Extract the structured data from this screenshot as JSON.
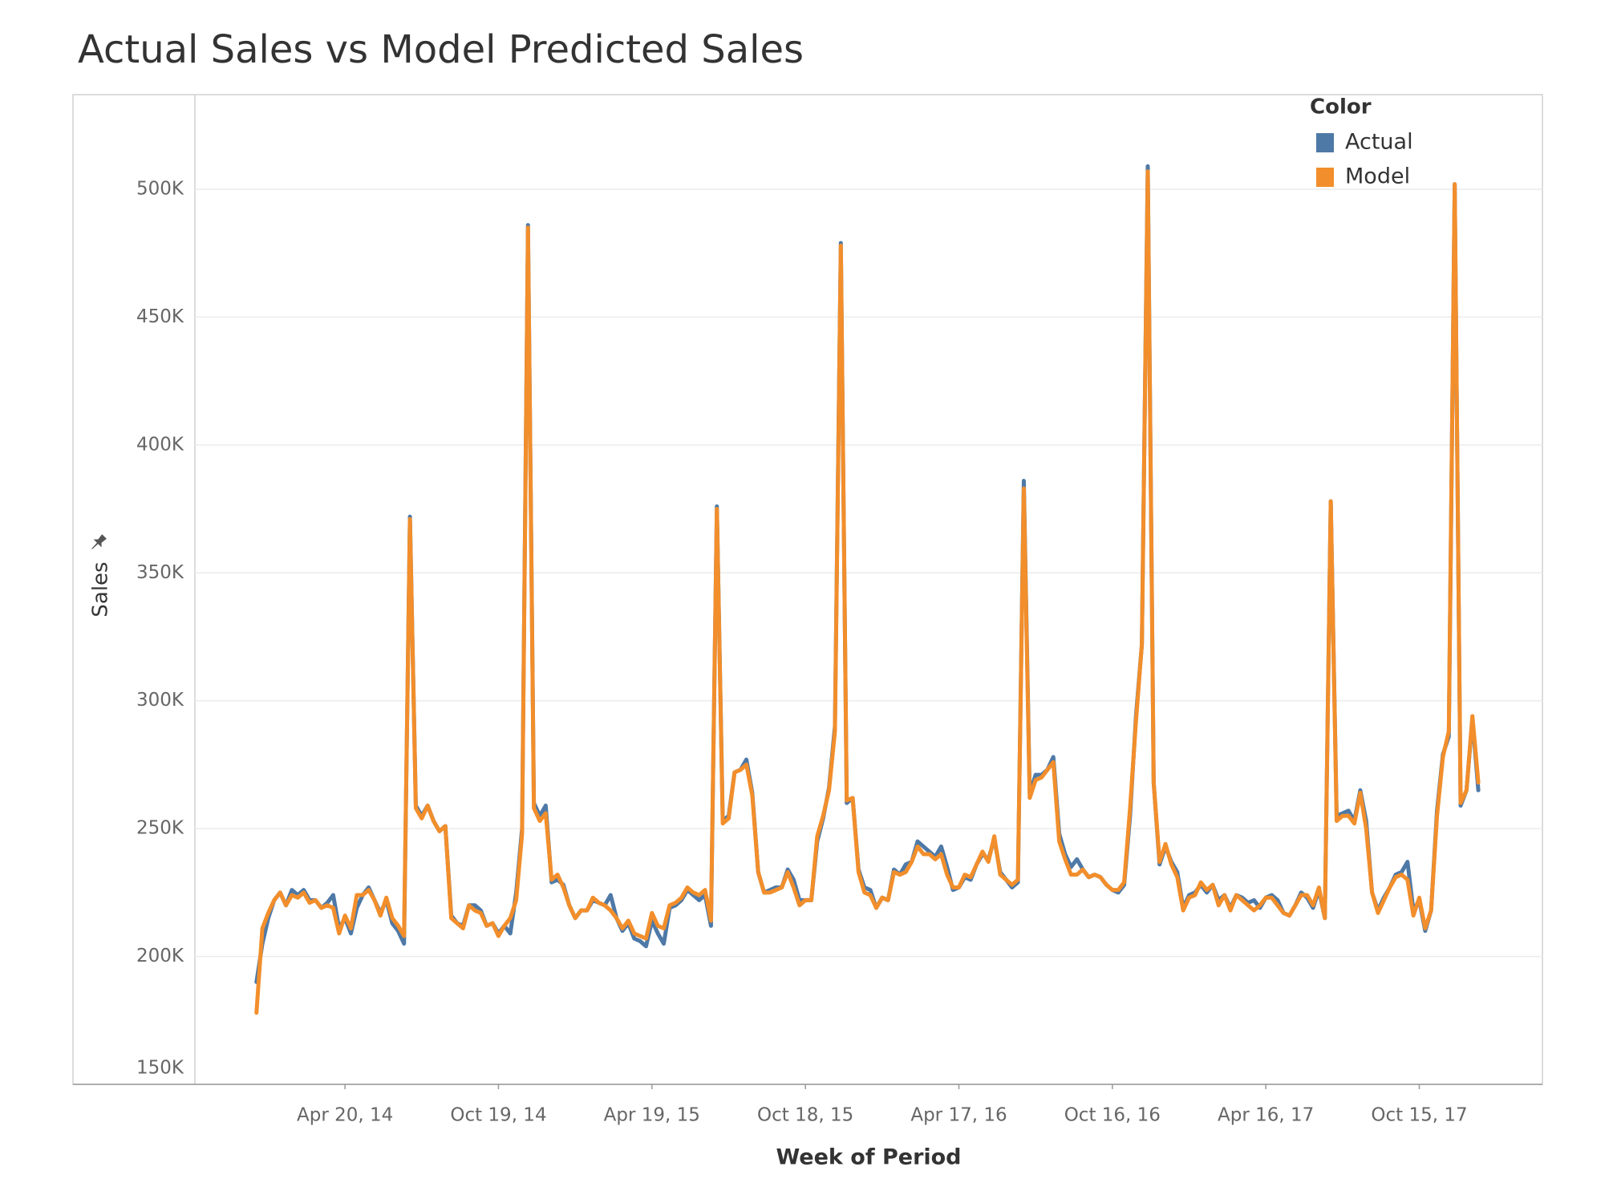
{
  "chart_data": {
    "type": "line",
    "title": "Actual Sales vs Model Predicted Sales",
    "x_label": "Week of Period",
    "y_label": "Sales",
    "legend_title": "Color",
    "legend_position": "top-right",
    "grid": true,
    "xlim": [
      "2013-10-24",
      "2018-03-10"
    ],
    "ylim": [
      150000,
      537000
    ],
    "yticks": [
      {
        "value": 150000,
        "label": "150K"
      },
      {
        "value": 200000,
        "label": "200K"
      },
      {
        "value": 250000,
        "label": "250K"
      },
      {
        "value": 300000,
        "label": "300K"
      },
      {
        "value": 350000,
        "label": "350K"
      },
      {
        "value": 400000,
        "label": "400K"
      },
      {
        "value": 450000,
        "label": "450K"
      },
      {
        "value": 500000,
        "label": "500K"
      }
    ],
    "xticks": [
      {
        "value": "2014-04-20",
        "label": "Apr 20, 14"
      },
      {
        "value": "2014-10-19",
        "label": "Oct 19, 14"
      },
      {
        "value": "2015-04-19",
        "label": "Apr 19, 15"
      },
      {
        "value": "2015-10-18",
        "label": "Oct 18, 15"
      },
      {
        "value": "2016-04-17",
        "label": "Apr 17, 16"
      },
      {
        "value": "2016-10-16",
        "label": "Oct 16, 16"
      },
      {
        "value": "2017-04-16",
        "label": "Apr 16, 17"
      },
      {
        "value": "2017-10-15",
        "label": "Oct 15, 17"
      }
    ],
    "x": [
      "2014-01-05",
      "2014-01-12",
      "2014-01-19",
      "2014-01-26",
      "2014-02-02",
      "2014-02-09",
      "2014-02-16",
      "2014-02-23",
      "2014-03-02",
      "2014-03-09",
      "2014-03-16",
      "2014-03-23",
      "2014-03-30",
      "2014-04-06",
      "2014-04-13",
      "2014-04-20",
      "2014-04-27",
      "2014-05-04",
      "2014-05-11",
      "2014-05-18",
      "2014-05-25",
      "2014-06-01",
      "2014-06-08",
      "2014-06-15",
      "2014-06-22",
      "2014-06-29",
      "2014-07-06",
      "2014-07-13",
      "2014-07-20",
      "2014-07-27",
      "2014-08-03",
      "2014-08-10",
      "2014-08-17",
      "2014-08-24",
      "2014-08-31",
      "2014-09-07",
      "2014-09-14",
      "2014-09-21",
      "2014-09-28",
      "2014-10-05",
      "2014-10-12",
      "2014-10-19",
      "2014-10-26",
      "2014-11-02",
      "2014-11-09",
      "2014-11-16",
      "2014-11-23",
      "2014-11-30",
      "2014-12-07",
      "2014-12-14",
      "2014-12-21",
      "2014-12-28",
      "2015-01-04",
      "2015-01-11",
      "2015-01-18",
      "2015-01-25",
      "2015-02-01",
      "2015-02-08",
      "2015-02-15",
      "2015-02-22",
      "2015-03-01",
      "2015-03-08",
      "2015-03-15",
      "2015-03-22",
      "2015-03-29",
      "2015-04-05",
      "2015-04-12",
      "2015-04-19",
      "2015-04-26",
      "2015-05-03",
      "2015-05-10",
      "2015-05-17",
      "2015-05-24",
      "2015-05-31",
      "2015-06-07",
      "2015-06-14",
      "2015-06-21",
      "2015-06-28",
      "2015-07-05",
      "2015-07-12",
      "2015-07-19",
      "2015-07-26",
      "2015-08-02",
      "2015-08-09",
      "2015-08-16",
      "2015-08-23",
      "2015-08-30",
      "2015-09-06",
      "2015-09-13",
      "2015-09-20",
      "2015-09-27",
      "2015-10-04",
      "2015-10-11",
      "2015-10-18",
      "2015-10-25",
      "2015-11-01",
      "2015-11-08",
      "2015-11-15",
      "2015-11-22",
      "2015-11-29",
      "2015-12-06",
      "2015-12-13",
      "2015-12-20",
      "2015-12-27",
      "2016-01-03",
      "2016-01-10",
      "2016-01-17",
      "2016-01-24",
      "2016-01-31",
      "2016-02-07",
      "2016-02-14",
      "2016-02-21",
      "2016-02-28",
      "2016-03-06",
      "2016-03-13",
      "2016-03-20",
      "2016-03-27",
      "2016-04-03",
      "2016-04-10",
      "2016-04-17",
      "2016-04-24",
      "2016-05-01",
      "2016-05-08",
      "2016-05-15",
      "2016-05-22",
      "2016-05-29",
      "2016-06-05",
      "2016-06-12",
      "2016-06-19",
      "2016-06-26",
      "2016-07-03",
      "2016-07-10",
      "2016-07-17",
      "2016-07-24",
      "2016-07-31",
      "2016-08-07",
      "2016-08-14",
      "2016-08-21",
      "2016-08-28",
      "2016-09-04",
      "2016-09-11",
      "2016-09-18",
      "2016-09-25",
      "2016-10-02",
      "2016-10-09",
      "2016-10-16",
      "2016-10-23",
      "2016-10-30",
      "2016-11-06",
      "2016-11-13",
      "2016-11-20",
      "2016-11-27",
      "2016-12-04",
      "2016-12-11",
      "2016-12-18",
      "2016-12-25",
      "2017-01-01",
      "2017-01-08",
      "2017-01-15",
      "2017-01-22",
      "2017-01-29",
      "2017-02-05",
      "2017-02-12",
      "2017-02-19",
      "2017-02-26",
      "2017-03-05",
      "2017-03-12",
      "2017-03-19",
      "2017-03-26",
      "2017-04-02",
      "2017-04-09",
      "2017-04-16",
      "2017-04-23",
      "2017-04-30",
      "2017-05-07",
      "2017-05-14",
      "2017-05-21",
      "2017-05-28",
      "2017-06-04",
      "2017-06-11",
      "2017-06-18",
      "2017-06-25",
      "2017-07-02",
      "2017-07-09",
      "2017-07-16",
      "2017-07-23",
      "2017-07-30",
      "2017-08-06",
      "2017-08-13",
      "2017-08-20",
      "2017-08-27",
      "2017-09-03",
      "2017-09-10",
      "2017-09-17",
      "2017-09-24",
      "2017-10-01",
      "2017-10-08",
      "2017-10-15",
      "2017-10-22",
      "2017-10-29",
      "2017-11-05",
      "2017-11-12",
      "2017-11-19",
      "2017-11-26",
      "2017-12-03",
      "2017-12-10",
      "2017-12-17",
      "2017-12-24"
    ],
    "series": [
      {
        "name": "Actual",
        "color": "#4e79a7",
        "values": [
          190000,
          205000,
          215000,
          222000,
          225000,
          220000,
          226000,
          224000,
          226000,
          222000,
          222000,
          219000,
          221000,
          224000,
          211000,
          215000,
          209000,
          219000,
          224000,
          227000,
          222000,
          217000,
          222000,
          213000,
          210000,
          205000,
          372000,
          259000,
          255000,
          259000,
          253000,
          249000,
          251000,
          216000,
          213000,
          212000,
          220000,
          220000,
          218000,
          212000,
          213000,
          209000,
          212000,
          209000,
          225000,
          250000,
          486000,
          260000,
          255000,
          259000,
          229000,
          230000,
          228000,
          220000,
          215000,
          218000,
          218000,
          222000,
          221000,
          220000,
          224000,
          215000,
          210000,
          213000,
          207000,
          206000,
          204000,
          214000,
          209000,
          205000,
          219000,
          220000,
          222000,
          226000,
          224000,
          222000,
          224000,
          212000,
          376000,
          253000,
          255000,
          272000,
          273000,
          277000,
          264000,
          233000,
          225000,
          226000,
          227000,
          227000,
          234000,
          230000,
          222000,
          222000,
          222000,
          245000,
          254000,
          266000,
          290000,
          479000,
          260000,
          262000,
          234000,
          227000,
          226000,
          219000,
          223000,
          222000,
          234000,
          232000,
          236000,
          237000,
          245000,
          243000,
          241000,
          239000,
          243000,
          235000,
          226000,
          227000,
          231000,
          230000,
          236000,
          240000,
          238000,
          246000,
          233000,
          230000,
          227000,
          229000,
          386000,
          264000,
          271000,
          271000,
          273000,
          278000,
          248000,
          240000,
          235000,
          238000,
          234000,
          231000,
          232000,
          231000,
          228000,
          226000,
          225000,
          228000,
          255000,
          294000,
          322000,
          509000,
          268000,
          236000,
          243000,
          237000,
          233000,
          219000,
          224000,
          225000,
          228000,
          225000,
          228000,
          222000,
          224000,
          219000,
          224000,
          223000,
          221000,
          222000,
          219000,
          223000,
          224000,
          222000,
          217000,
          216000,
          220000,
          225000,
          223000,
          219000,
          226000,
          215000,
          378000,
          255000,
          256000,
          257000,
          253000,
          265000,
          253000,
          225000,
          218000,
          223000,
          227000,
          232000,
          233000,
          237000,
          218000,
          222000,
          210000,
          218000,
          257000,
          279000,
          286000,
          502000,
          259000,
          265000,
          293000,
          265000
        ]
      },
      {
        "name": "Model",
        "color": "#f28e2b",
        "values": [
          178000,
          211000,
          217000,
          222000,
          225000,
          220000,
          224000,
          223000,
          225000,
          221000,
          222000,
          219000,
          220000,
          219000,
          209000,
          216000,
          211000,
          224000,
          224000,
          226000,
          222000,
          216000,
          223000,
          215000,
          212000,
          208000,
          371000,
          258000,
          254000,
          259000,
          253000,
          249000,
          251000,
          215000,
          213000,
          211000,
          220000,
          218000,
          217000,
          212000,
          213000,
          208000,
          212000,
          215000,
          222000,
          248000,
          485000,
          258000,
          253000,
          256000,
          230000,
          232000,
          227000,
          220000,
          215000,
          218000,
          218000,
          223000,
          221000,
          220000,
          218000,
          215000,
          211000,
          214000,
          209000,
          208000,
          207000,
          217000,
          212000,
          211000,
          220000,
          221000,
          223000,
          227000,
          225000,
          224000,
          226000,
          214000,
          375000,
          252000,
          254000,
          272000,
          273000,
          275000,
          263000,
          233000,
          225000,
          225000,
          226000,
          227000,
          233000,
          227000,
          220000,
          222000,
          222000,
          247000,
          255000,
          265000,
          288000,
          478000,
          261000,
          262000,
          233000,
          225000,
          224000,
          219000,
          223000,
          222000,
          233000,
          232000,
          233000,
          237000,
          243000,
          240000,
          240000,
          238000,
          240000,
          232000,
          227000,
          227000,
          232000,
          231000,
          236000,
          241000,
          237000,
          247000,
          232000,
          230000,
          228000,
          230000,
          383000,
          262000,
          269000,
          270000,
          273000,
          276000,
          245000,
          238000,
          232000,
          232000,
          234000,
          231000,
          232000,
          231000,
          228000,
          226000,
          226000,
          229000,
          258000,
          292000,
          322000,
          507000,
          268000,
          237000,
          244000,
          236000,
          231000,
          218000,
          223000,
          224000,
          229000,
          226000,
          228000,
          220000,
          224000,
          218000,
          224000,
          222000,
          220000,
          218000,
          220000,
          223000,
          223000,
          220000,
          217000,
          216000,
          220000,
          224000,
          224000,
          220000,
          227000,
          215000,
          378000,
          253000,
          255000,
          255000,
          252000,
          264000,
          250000,
          225000,
          217000,
          222000,
          227000,
          231000,
          232000,
          230000,
          216000,
          223000,
          211000,
          218000,
          255000,
          278000,
          288000,
          502000,
          260000,
          265000,
          294000,
          268000
        ]
      }
    ]
  }
}
